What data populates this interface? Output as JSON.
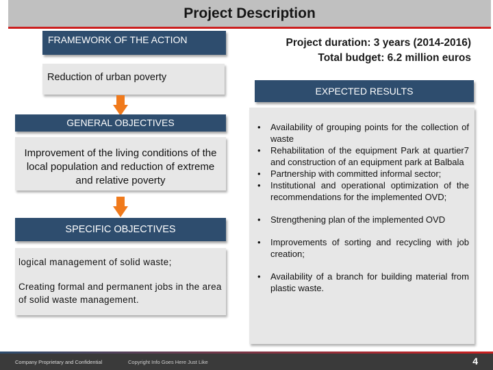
{
  "title": "Project Description",
  "framework": "FRAMEWORK OF THE ACTION",
  "duration": "Project duration: 3 years (2014-2016)",
  "budget": "Total budget: 6.2 million euros",
  "reduction": "Reduction of urban poverty",
  "expected_results": "EXPECTED RESULTS",
  "general_objectives": "GENERAL OBJECTIVES",
  "improvement": "Improvement of the living conditions of the local population and reduction of extreme and relative poverty",
  "specific_objectives": "SPECIFIC OBJECTIVES",
  "specific_items": [
    "logical management of solid waste;",
    "Creating formal and permanent jobs in the area of solid waste management."
  ],
  "results": [
    "Availability of grouping points for the collection of waste",
    "Rehabilitation of the equipment Park at quartier7 and construction of an equipment park at Balbala",
    "Partnership with committed informal sector;",
    "Institutional and operational optimization of the recommendations for the implemented OVD;",
    "Strengthening plan of the implemented OVD",
    "Improvements of sorting and recycling with job creation;",
    "Availability of a branch for building material from plastic waste."
  ],
  "bullet": "•",
  "footer": {
    "proprietary": "Company Proprietary and Confidential",
    "copyright": "Copyright Info Goes Here Just Like",
    "page_number": "4"
  },
  "colors": {
    "dark_box": "#2e4d6e",
    "accent_red": "#cc1f1f",
    "arrow_orange": "#f07a1c",
    "gray_box": "#e7e7e7"
  },
  "icons": [
    "arrow-down-icon"
  ]
}
